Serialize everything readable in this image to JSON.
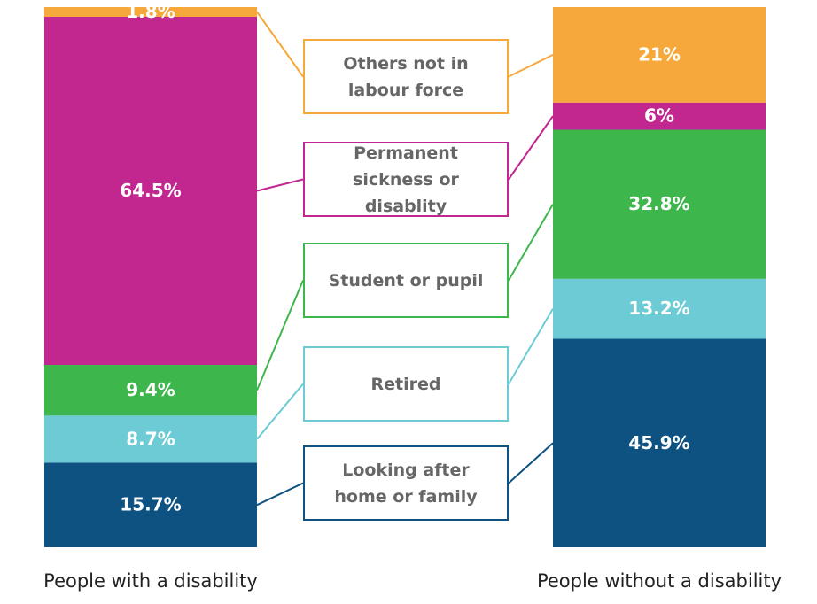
{
  "chart_data": {
    "type": "stacked_bar",
    "categories": [
      "People with a disability",
      "People without a disability"
    ],
    "series": [
      {
        "name": "Looking after home or family",
        "color": "#0e5281",
        "values": [
          15.7,
          45.9
        ],
        "value_labels": [
          "15.7%",
          "45.9%"
        ]
      },
      {
        "name": "Retired",
        "color": "#6ccbd4",
        "values": [
          8.7,
          13.2
        ],
        "value_labels": [
          "8.7%",
          "13.2%"
        ]
      },
      {
        "name": "Student or pupil",
        "color": "#3db64b",
        "values": [
          9.4,
          32.8
        ],
        "value_labels": [
          "9.4%",
          "32.8%"
        ]
      },
      {
        "name": "Permanent sickness or disablity",
        "color": "#c1278f",
        "values": [
          64.5,
          6
        ],
        "value_labels": [
          "64.5%",
          "6%"
        ]
      },
      {
        "name": "Others not in labour force",
        "color": "#f6a83b",
        "values": [
          1.8,
          21
        ],
        "value_labels": [
          "1.8%",
          "21%"
        ]
      }
    ]
  }
}
